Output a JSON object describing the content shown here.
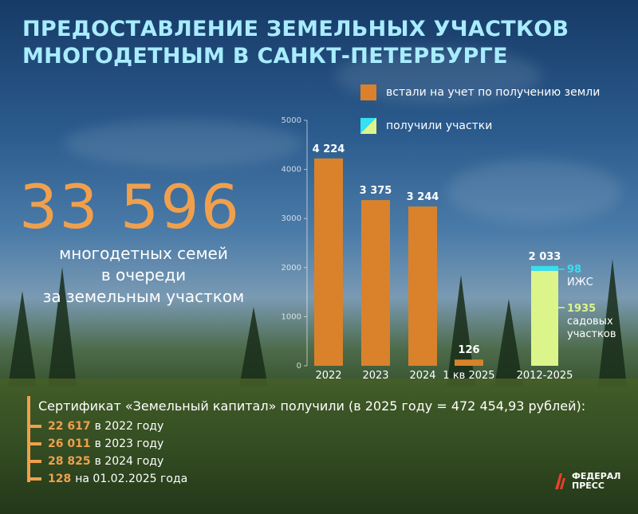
{
  "title_line1": "ПРЕДОСТАВЛЕНИЕ ЗЕМЕЛЬНЫХ УЧАСТКОВ",
  "title_line2": "МНОГОДЕТНЫМ В САНКТ-ПЕТЕРБУРГЕ",
  "headline_number": "33 596",
  "headline_caption": [
    "многодетных семей",
    "в очереди",
    "за земельным участком"
  ],
  "legend": {
    "registered": "встали на учет по получению земли",
    "received": "получили участки"
  },
  "colors": {
    "registered": "#d9822b",
    "received_main": "#dcf58a",
    "received_top": "#35e0f0",
    "title": "#a8ecff",
    "headline": "#f0a04c"
  },
  "chart_data": {
    "type": "bar",
    "ylim": [
      0,
      5000
    ],
    "yticks": [
      "0",
      "1000",
      "2000",
      "3000",
      "4000",
      "5000"
    ],
    "categories": [
      "2022",
      "2023",
      "2024",
      "1 кв 2025",
      "2012-2025"
    ],
    "series": [
      {
        "name": "встали на учет по получению земли",
        "values": [
          4224,
          3375,
          3244,
          126,
          null
        ],
        "labels": [
          "4 224",
          "3 375",
          "3 244",
          "126",
          ""
        ]
      },
      {
        "name": "получили участки",
        "stacked": true,
        "category": "2012-2025",
        "total_label": "2 033",
        "segments": [
          {
            "value": 1935,
            "label_value": "1935",
            "label_text": [
              "садовых",
              "участков"
            ]
          },
          {
            "value": 98,
            "label_value": "98",
            "label_text": [
              "ИЖС"
            ]
          }
        ]
      }
    ]
  },
  "certificate": {
    "title": "Сертификат «Земельный капитал» получили (в 2025 году = 472 454,93 рублей):",
    "rows": [
      {
        "value": "22 617",
        "text": "в 2022 году"
      },
      {
        "value": "26 011",
        "text": "в 2023 году"
      },
      {
        "value": "28 825",
        "text": "в 2024 году"
      },
      {
        "value": "128",
        "text": "на 01.02.2025 года"
      }
    ]
  },
  "logo": {
    "line1": "ФЕДЕРАЛ",
    "line2": "ПРЕСС"
  }
}
